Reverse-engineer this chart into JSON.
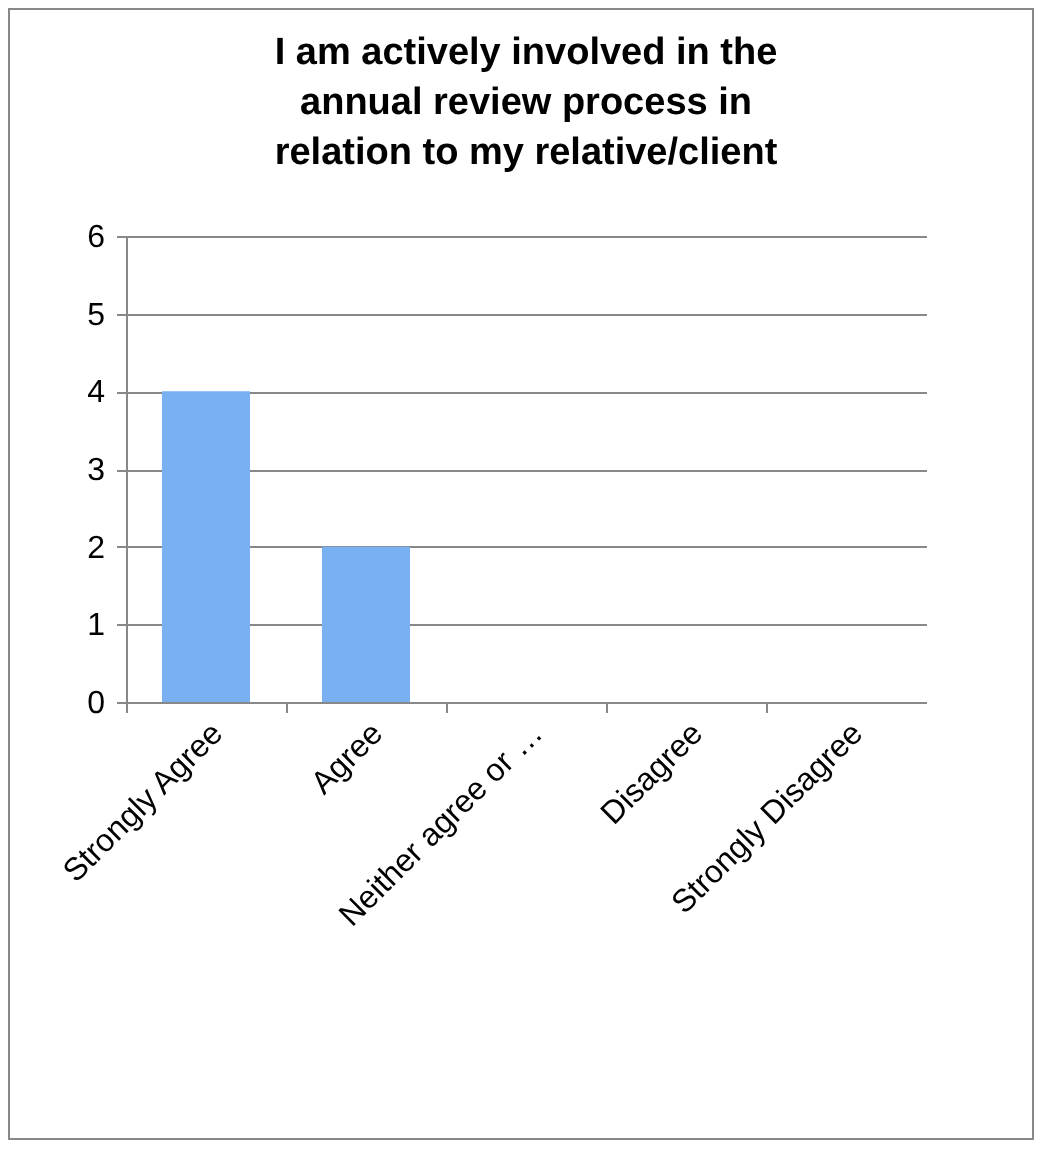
{
  "chart_data": {
    "type": "bar",
    "title": "I am actively involved in the annual review process in relation to my relative/client",
    "categories": [
      "Strongly Agree",
      "Agree",
      "Neither agree or …",
      "Disagree",
      "Strongly Disagree"
    ],
    "values": [
      4,
      2,
      0,
      0,
      0
    ],
    "color": "#79b0f2",
    "ylim": [
      0,
      6
    ],
    "yticks": [
      0,
      1,
      2,
      3,
      4,
      5,
      6
    ],
    "grid": "y"
  }
}
